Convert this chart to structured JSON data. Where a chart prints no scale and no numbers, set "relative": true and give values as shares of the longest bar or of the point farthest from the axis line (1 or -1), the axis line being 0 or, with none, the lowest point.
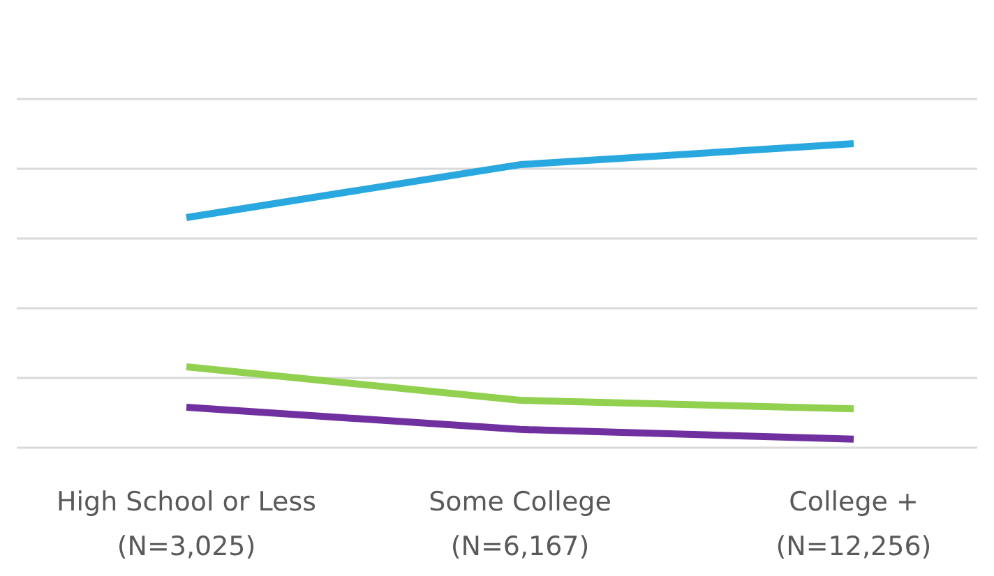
{
  "chart_data": {
    "type": "line",
    "relative": true,
    "grid": true,
    "marker": "none",
    "line_style": "solid",
    "categories": [
      "High School or Less\n(N=3,025)",
      "Some College\n(N=6,167)",
      "College +\n(N=12,256)"
    ],
    "series": [
      {
        "color": "#29a8e0",
        "values": [
          0.757,
          0.931,
          1
        ]
      },
      {
        "color": "#92d050",
        "values": [
          0.266,
          0.156,
          0.128
        ]
      },
      {
        "color": "#7030a0",
        "values": [
          0.133,
          0.06,
          0.028
        ]
      }
    ]
  }
}
